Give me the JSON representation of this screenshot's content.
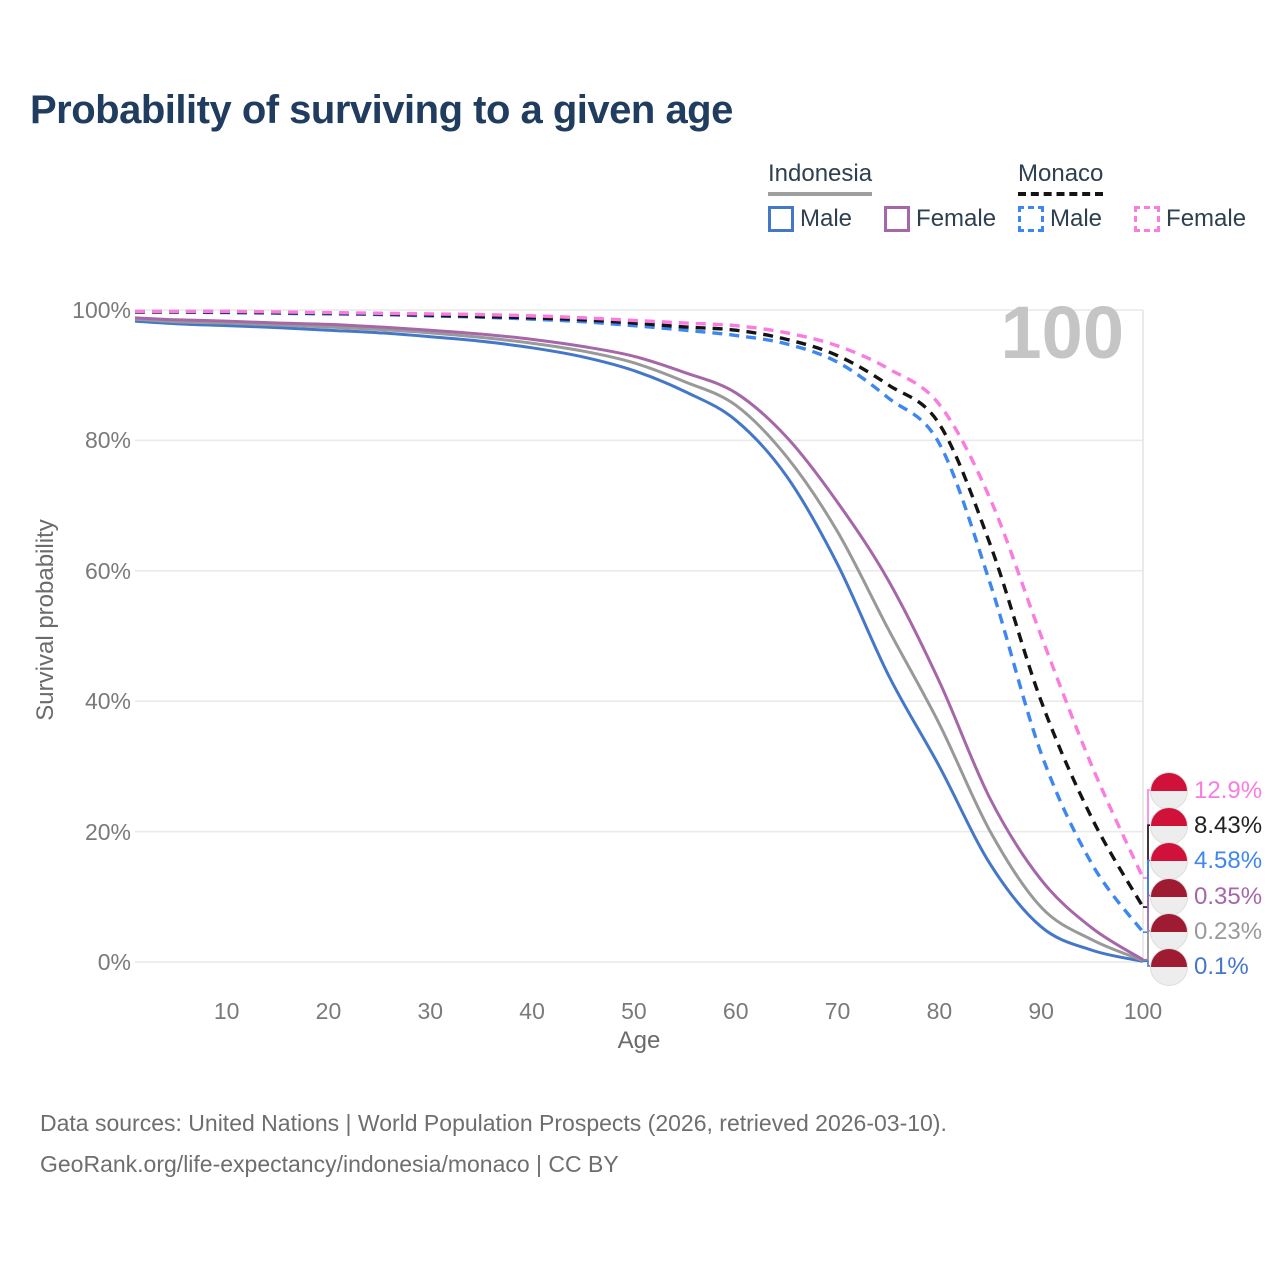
{
  "title": "Probability of surviving to a given age",
  "watermark_age": "100",
  "legend": {
    "groups": [
      {
        "label": "Indonesia",
        "style": "solid",
        "entries": [
          {
            "label": "Male",
            "series": "in_male"
          },
          {
            "label": "Female",
            "series": "in_female"
          }
        ]
      },
      {
        "label": "Monaco",
        "style": "dashed",
        "entries": [
          {
            "label": "Male",
            "series": "mc_male"
          },
          {
            "label": "Female",
            "series": "mc_female"
          }
        ]
      }
    ]
  },
  "chart_data": {
    "type": "line",
    "title": "Probability of surviving to a given age",
    "xlabel": "Age",
    "ylabel": "Survival probability",
    "xlim": [
      1,
      100
    ],
    "ylim": [
      0,
      100
    ],
    "x_ticks": [
      10,
      20,
      30,
      40,
      50,
      60,
      70,
      80,
      90,
      100
    ],
    "y_ticks": [
      0,
      20,
      40,
      60,
      80,
      100
    ],
    "y_tick_suffix": "%",
    "grid": "horizontal",
    "legend_position": "top-right",
    "x": [
      1,
      5,
      10,
      15,
      20,
      25,
      30,
      35,
      40,
      45,
      50,
      55,
      60,
      65,
      70,
      75,
      80,
      85,
      90,
      95,
      100
    ],
    "series": [
      {
        "key": "in_male",
        "name": "Indonesia Male",
        "country": "Indonesia",
        "color": "#4577c9",
        "dash": false,
        "values": [
          98.3,
          97.9,
          97.6,
          97.3,
          96.9,
          96.5,
          95.9,
          95.2,
          94.2,
          92.8,
          90.7,
          87.5,
          83.1,
          74.5,
          61,
          44,
          30,
          15,
          5.4,
          1.8,
          0.1
        ]
      },
      {
        "key": "in_total",
        "name": "Indonesia Both sexes",
        "country": "Indonesia",
        "color": "#999999",
        "dash": false,
        "values": [
          98.6,
          98.2,
          98.0,
          97.7,
          97.4,
          97.0,
          96.5,
          95.8,
          94.9,
          93.7,
          91.9,
          89.0,
          85.4,
          77.5,
          66,
          51,
          36.5,
          20,
          8.4,
          3.4,
          0.23
        ]
      },
      {
        "key": "in_female",
        "name": "Indonesia Female",
        "country": "Indonesia",
        "color": "#a667a9",
        "dash": false,
        "values": [
          98.8,
          98.5,
          98.3,
          98.0,
          97.8,
          97.4,
          96.9,
          96.3,
          95.5,
          94.4,
          92.9,
          90.4,
          87.3,
          80.5,
          70.5,
          58.5,
          43,
          25,
          12.6,
          5.2,
          0.35
        ]
      },
      {
        "key": "mc_male",
        "name": "Monaco Male",
        "country": "Monaco",
        "color": "#3e86f0",
        "dash": true,
        "values": [
          99.7,
          99.7,
          99.6,
          99.5,
          99.4,
          99.3,
          99.1,
          98.9,
          98.6,
          98.2,
          97.6,
          96.9,
          96.1,
          94.8,
          92,
          86.5,
          79.5,
          58,
          32,
          15,
          4.58
        ]
      },
      {
        "key": "mc_total",
        "name": "Monaco Both sexes",
        "country": "Monaco",
        "color": "#141414",
        "dash": true,
        "values": [
          99.7,
          99.7,
          99.7,
          99.6,
          99.5,
          99.4,
          99.2,
          99.0,
          98.8,
          98.5,
          98.0,
          97.4,
          96.9,
          95.5,
          93,
          88.5,
          82.5,
          64,
          40,
          22,
          8.43
        ]
      },
      {
        "key": "mc_female",
        "name": "Monaco Female",
        "country": "Monaco",
        "color": "#fa7ce0",
        "dash": true,
        "values": [
          99.8,
          99.8,
          99.8,
          99.7,
          99.6,
          99.5,
          99.4,
          99.3,
          99.1,
          98.8,
          98.4,
          98.0,
          97.6,
          96.5,
          94.5,
          91,
          85.5,
          71,
          50,
          30,
          12.9
        ]
      }
    ]
  },
  "end_labels": [
    {
      "value": "12.9%",
      "series": "mc_female",
      "country": "Monaco",
      "color": "#fa7ce0"
    },
    {
      "value": "8.43%",
      "series": "mc_total",
      "country": "Monaco",
      "color": "#222222"
    },
    {
      "value": "4.58%",
      "series": "mc_male",
      "country": "Monaco",
      "color": "#3e86f0"
    },
    {
      "value": "0.35%",
      "series": "in_female",
      "country": "Indonesia",
      "color": "#a667a9"
    },
    {
      "value": "0.23%",
      "series": "in_total",
      "country": "Indonesia",
      "color": "#999999"
    },
    {
      "value": "0.1%",
      "series": "in_male",
      "country": "Indonesia",
      "color": "#4577c9"
    }
  ],
  "colors": {
    "title": "#203c5e",
    "axis_text": "#7a7a7a",
    "grid": "#e9e9e9",
    "watermark": "#c5c5c5",
    "legend_text": "#2e3f50",
    "indonesia_header_underline": "#9e9e9e",
    "monaco_header_underline": "#141414",
    "flag_monaco_red": "#d0123a",
    "flag_indonesia_red": "#9e1b32",
    "flag_bottom_white": "#ededed"
  },
  "footer": {
    "line1": "Data sources: United Nations | World Population Prospects (2026, retrieved 2026-03-10).",
    "line2": "GeoRank.org/life-expectancy/indonesia/monaco | CC BY"
  }
}
